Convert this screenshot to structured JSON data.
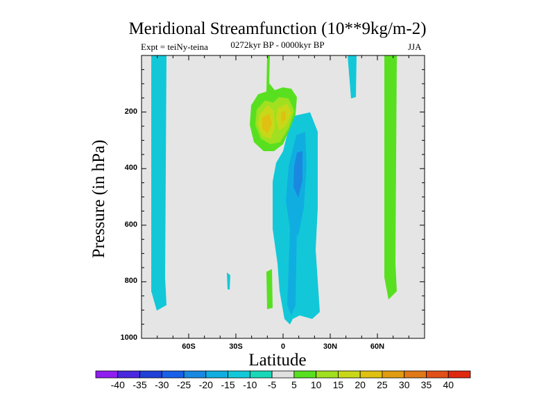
{
  "chart_data": {
    "type": "contour",
    "title": "Meridional Streamfunction (10**9kg/m-2)",
    "left_subtitle": "Expt = teiNy-teina",
    "center_subtitle": "0272kyr BP - 0000kyr BP",
    "right_subtitle": "JJA",
    "xlabel": "Latitude",
    "ylabel": "Pressure (in hPa)",
    "xlim": [
      -90,
      90
    ],
    "ylim": [
      1000,
      0
    ],
    "x_ticks": [
      {
        "value": -60,
        "label": "60S"
      },
      {
        "value": -30,
        "label": "30S"
      },
      {
        "value": 0,
        "label": "0"
      },
      {
        "value": 30,
        "label": "30N"
      },
      {
        "value": 60,
        "label": "60N"
      }
    ],
    "y_ticks": [
      {
        "value": 200,
        "label": "200"
      },
      {
        "value": 400,
        "label": "400"
      },
      {
        "value": 600,
        "label": "600"
      },
      {
        "value": 800,
        "label": "800"
      },
      {
        "value": 1000,
        "label": "1000"
      }
    ],
    "colorbar": {
      "labels": [
        "-40",
        "-35",
        "-30",
        "-25",
        "-20",
        "-15",
        "-10",
        "-5",
        "5",
        "10",
        "15",
        "20",
        "25",
        "30",
        "35",
        "40"
      ],
      "colors": [
        "#8f1ef0",
        "#4a28e0",
        "#2040d8",
        "#1860e8",
        "#1a88e0",
        "#10aee0",
        "#12c8d8",
        "#18d8b8",
        "#e0e0e0",
        "#58e020",
        "#a0e020",
        "#c8d818",
        "#e0c010",
        "#e09c10",
        "#e07818",
        "#e05018",
        "#e02810"
      ]
    },
    "features": [
      {
        "name": "southern-polar-negative-band",
        "lat_range": [
          -80,
          -73
        ],
        "p_range": [
          0,
          880
        ],
        "value_range": [
          -10,
          -5
        ]
      },
      {
        "name": "northern-polar-positive-band",
        "lat_range": [
          67,
          74
        ],
        "p_range": [
          0,
          860
        ],
        "value_range": [
          5,
          10
        ]
      },
      {
        "name": "upper-tropical-positive-cell",
        "lat_range": [
          -20,
          -2
        ],
        "p_range": [
          110,
          330
        ],
        "value_range": [
          5,
          20
        ]
      },
      {
        "name": "tropical-negative-cell",
        "lat_range": [
          -6,
          22
        ],
        "p_range": [
          220,
          950
        ],
        "value_range": [
          -20,
          -5
        ]
      },
      {
        "name": "northern-mid-latitude-negative-strip",
        "lat_range": [
          42,
          46
        ],
        "p_range": [
          0,
          140
        ],
        "value_range": [
          -10,
          -5
        ]
      },
      {
        "name": "lower-tropical-positive-strip",
        "lat_range": [
          -10,
          -6
        ],
        "p_range": [
          750,
          900
        ],
        "value_range": [
          5,
          10
        ]
      },
      {
        "name": "small-negative-spot",
        "lat_range": [
          -35,
          -33
        ],
        "p_range": [
          760,
          830
        ],
        "value_range": [
          -10,
          -5
        ]
      }
    ]
  }
}
